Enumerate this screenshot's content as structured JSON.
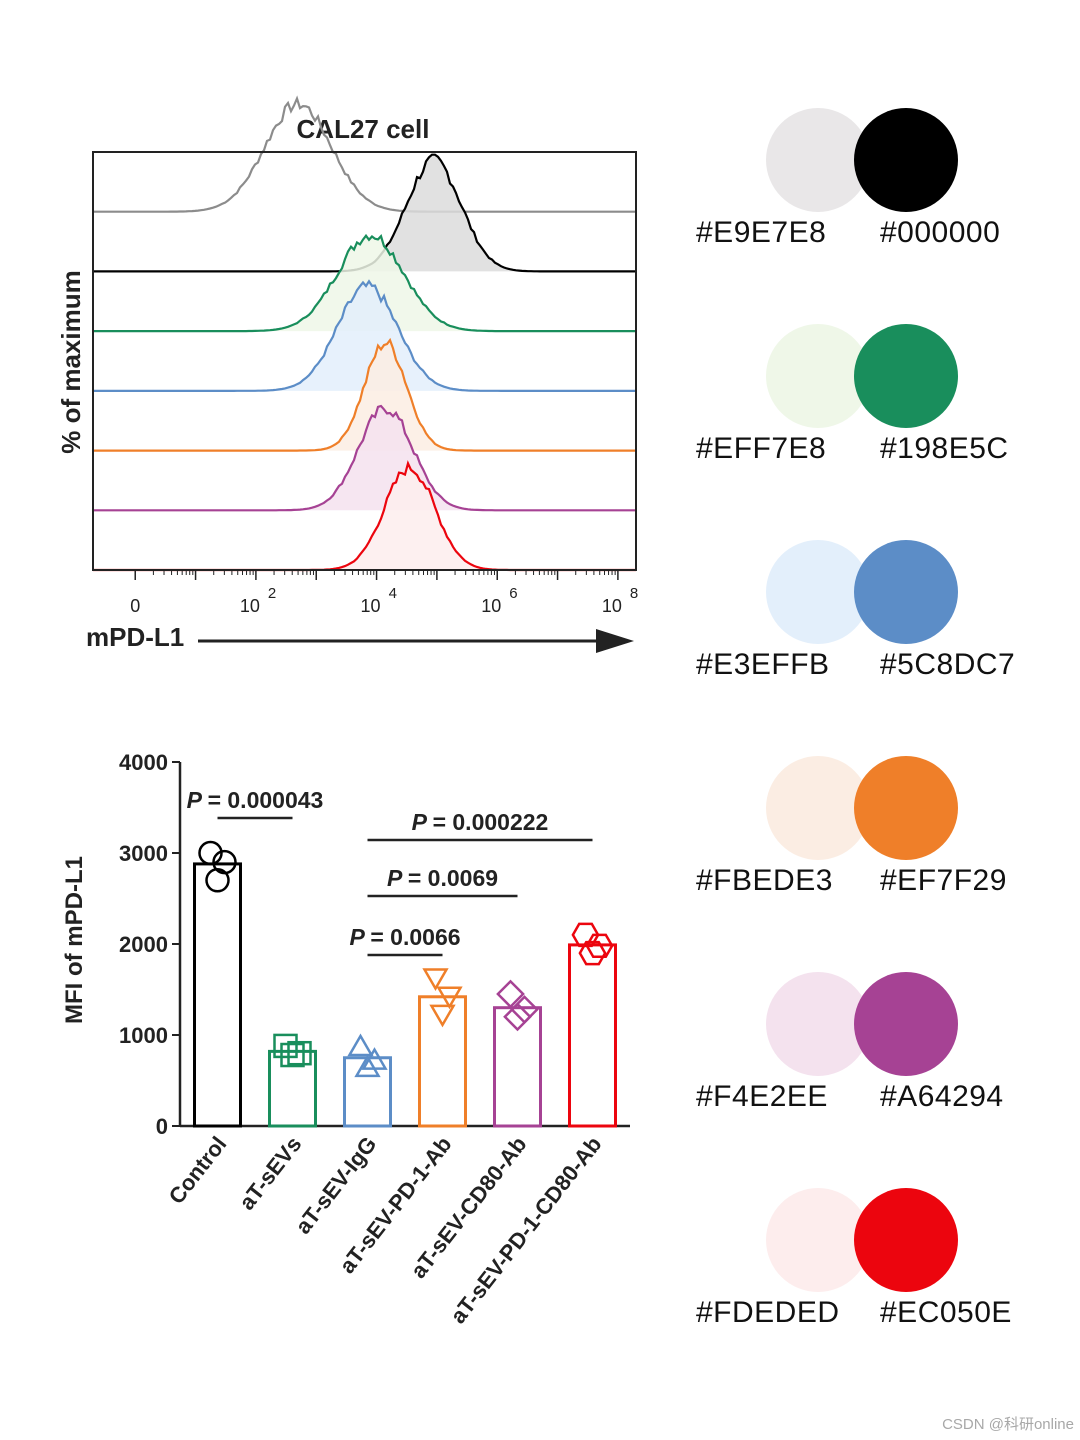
{
  "chart_data": [
    {
      "type": "histogram",
      "title": "CAL27 cell",
      "ylabel": "% of maximum",
      "xlabel": "mPD-L1",
      "x_scale": "log",
      "x_ticks": [
        {
          "base": "0",
          "exp": ""
        },
        {
          "base": "10",
          "exp": "2"
        },
        {
          "base": "10",
          "exp": "4"
        },
        {
          "base": "10",
          "exp": "6"
        },
        {
          "base": "10",
          "exp": "8"
        }
      ],
      "series": [
        {
          "color": "#8c8c8c",
          "fill": "none",
          "peak_log10": 2.7,
          "width": 0.55,
          "peak_height": 0.95
        },
        {
          "color": "#000000",
          "fill": "#dcdcdc",
          "peak_log10": 4.95,
          "width": 0.45,
          "peak_height": 0.98
        },
        {
          "color": "#198e5c",
          "fill": "#eff7e8",
          "peak_log10": 3.9,
          "width": 0.55,
          "peak_height": 0.85
        },
        {
          "color": "#5c8dc7",
          "fill": "#e3effb",
          "peak_log10": 3.85,
          "width": 0.5,
          "peak_height": 0.92
        },
        {
          "color": "#ef7f29",
          "fill": "#fbede3",
          "peak_log10": 4.15,
          "width": 0.35,
          "peak_height": 0.95
        },
        {
          "color": "#a64294",
          "fill": "#f4e2ee",
          "peak_log10": 4.15,
          "width": 0.45,
          "peak_height": 0.9
        },
        {
          "color": "#ec050e",
          "fill": "#fdeded",
          "peak_log10": 4.55,
          "width": 0.42,
          "peak_height": 0.9
        }
      ]
    },
    {
      "type": "bar",
      "ylabel": "MFI of mPD-L1",
      "ylim": [
        0,
        4000
      ],
      "yticks": [
        "0",
        "1000",
        "2000",
        "3000",
        "4000"
      ],
      "categories": [
        "Control",
        "aT-sEVs",
        "aT-sEV-IgG",
        "aT-sEV-PD-1-Ab",
        "aT-sEV-CD80-Ab",
        "aT-sEV-PD-1-CD80-Ab"
      ],
      "values": [
        2880,
        820,
        750,
        1420,
        1300,
        1990
      ],
      "colors": [
        "#000000",
        "#198e5c",
        "#5c8dc7",
        "#ef7f29",
        "#a64294",
        "#ec050e"
      ],
      "markers": [
        "circle",
        "square",
        "triangle-up",
        "triangle-down",
        "diamond",
        "hexagon"
      ],
      "points": [
        [
          3000,
          2900,
          2700
        ],
        [
          880,
          800,
          780
        ],
        [
          850,
          700,
          620
        ],
        [
          1650,
          1450,
          1250
        ],
        [
          1450,
          1280,
          1200
        ],
        [
          2100,
          1980,
          1900
        ]
      ],
      "annotations": [
        {
          "text": "= 0.000043",
          "from": 0,
          "to": 1
        },
        {
          "text": "= 0.000222",
          "from": 2,
          "to": 5
        },
        {
          "text": "= 0.0069",
          "from": 2,
          "to": 4
        },
        {
          "text": "= 0.0066",
          "from": 2,
          "to": 3
        }
      ],
      "p_label": "P"
    }
  ],
  "palette": [
    {
      "light": "#E9E7E8",
      "dark": "#000000"
    },
    {
      "light": "#EFF7E8",
      "dark": "#198E5C"
    },
    {
      "light": "#E3EFFB",
      "dark": "#5C8DC7"
    },
    {
      "light": "#FBEDE3",
      "dark": "#EF7F29"
    },
    {
      "light": "#F4E2EE",
      "dark": "#A64294"
    },
    {
      "light": "#FDEDED",
      "dark": "#EC050E"
    }
  ],
  "watermark": "CSDN @科研online"
}
